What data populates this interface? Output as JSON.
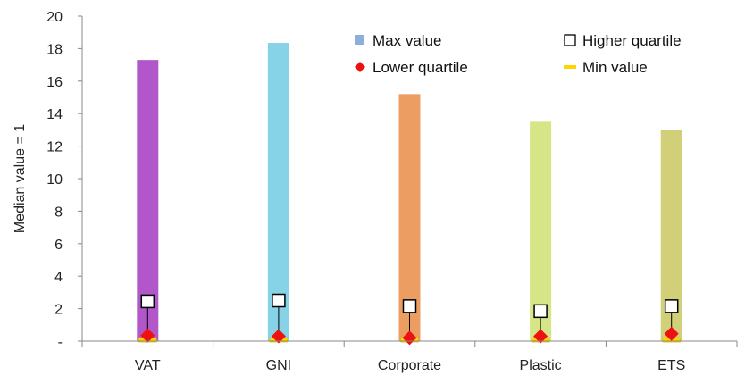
{
  "chart_data": {
    "type": "bar",
    "ylabel": "Median value = 1",
    "ylim": [
      0,
      20
    ],
    "y_ticks": [
      {
        "value": 0,
        "label": "-"
      },
      {
        "value": 2,
        "label": "2"
      },
      {
        "value": 4,
        "label": "4"
      },
      {
        "value": 6,
        "label": "6"
      },
      {
        "value": 8,
        "label": "8"
      },
      {
        "value": 10,
        "label": "10"
      },
      {
        "value": 12,
        "label": "12"
      },
      {
        "value": 14,
        "label": "14"
      },
      {
        "value": 16,
        "label": "16"
      },
      {
        "value": 18,
        "label": "18"
      },
      {
        "value": 20,
        "label": "20"
      }
    ],
    "categories": [
      "VAT",
      "GNI",
      "Corporate",
      "Plastic",
      "ETS"
    ],
    "bar_colors": [
      "#b157c9",
      "#86d3e8",
      "#ec9d62",
      "#d6e687",
      "#d2cf79"
    ],
    "grid": false,
    "legend_position": "top-right",
    "series": [
      {
        "name": "Max value",
        "marker": "square-bar",
        "color": "#8eaedb",
        "values": [
          17.3,
          18.35,
          15.2,
          13.5,
          13.0
        ]
      },
      {
        "name": "Higher quartile",
        "marker": "open-square",
        "color": "#000000",
        "values": [
          2.45,
          2.5,
          2.15,
          1.85,
          2.15
        ]
      },
      {
        "name": "Lower quartile",
        "marker": "diamond",
        "color": "#ee1111",
        "values": [
          0.35,
          0.3,
          0.2,
          0.3,
          0.45
        ]
      },
      {
        "name": "Min value",
        "marker": "dash",
        "color": "#ffd400",
        "values": [
          0.05,
          0.05,
          0.05,
          0.05,
          0.05
        ]
      }
    ]
  }
}
